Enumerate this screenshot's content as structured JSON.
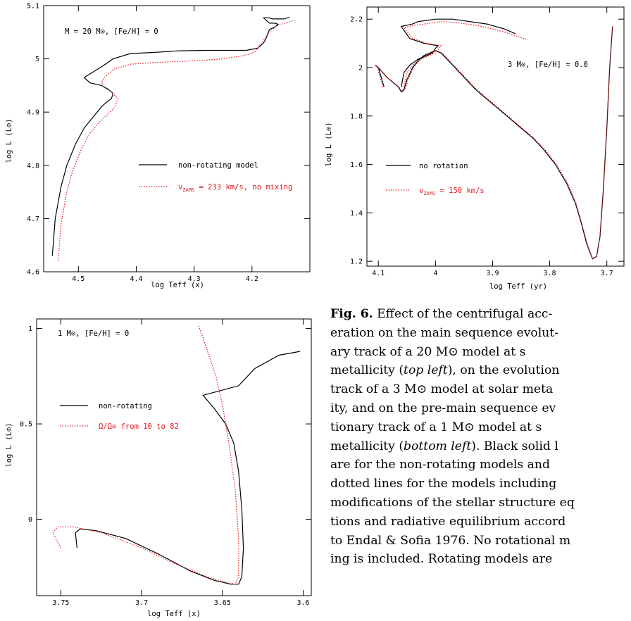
{
  "colors": {
    "nonrotating": "#000000",
    "rotating": "#e8161b"
  },
  "chart_data": [
    {
      "type": "line",
      "annotation": "M = 20 M⊙, [Fe/H] = 0",
      "xlabel": "log Teff (x)",
      "ylabel": "log L (L⊙)",
      "xlim": [
        4.56,
        4.1
      ],
      "ylim": [
        4.6,
        5.1
      ],
      "x_ticks": [
        "4.5",
        "4.4",
        "4.3",
        "4.2"
      ],
      "y_ticks": [
        "4.6",
        "4.7",
        "4.8",
        "4.9",
        "5",
        "5.1"
      ],
      "series": [
        {
          "name": "non-rotating model",
          "style": "solid",
          "x": [
            4.545,
            4.54,
            4.53,
            4.52,
            4.505,
            4.49,
            4.475,
            4.46,
            4.45,
            4.443,
            4.44,
            4.445,
            4.46,
            4.48,
            4.49,
            4.475,
            4.46,
            4.44,
            4.41,
            4.37,
            4.33,
            4.28,
            4.24,
            4.21,
            4.19,
            4.18,
            4.175,
            4.17,
            4.16,
            4.155,
            4.16,
            4.17,
            4.175,
            4.18,
            4.17,
            4.165,
            4.155,
            4.145,
            4.135
          ],
          "y": [
            4.63,
            4.7,
            4.76,
            4.8,
            4.84,
            4.87,
            4.89,
            4.91,
            4.92,
            4.925,
            4.935,
            4.94,
            4.95,
            4.955,
            4.965,
            4.975,
            4.985,
            5.0,
            5.01,
            5.012,
            5.015,
            5.016,
            5.016,
            5.016,
            5.02,
            5.03,
            5.04,
            5.055,
            5.06,
            5.065,
            5.067,
            5.067,
            5.072,
            5.077,
            5.077,
            5.075,
            5.075,
            5.075,
            5.078
          ]
        },
        {
          "name": "v_ZAMS = 233 km/s, no mixing",
          "style": "dotted",
          "x": [
            4.535,
            4.53,
            4.52,
            4.51,
            4.495,
            4.48,
            4.465,
            4.45,
            4.44,
            4.435,
            4.432,
            4.44,
            4.45,
            4.46,
            4.455,
            4.44,
            4.41,
            4.37,
            4.33,
            4.29,
            4.25,
            4.22,
            4.2,
            4.19,
            4.18,
            4.17,
            4.16,
            4.15,
            4.14,
            4.125
          ],
          "y": [
            4.62,
            4.69,
            4.75,
            4.79,
            4.83,
            4.86,
            4.88,
            4.895,
            4.905,
            4.915,
            4.925,
            4.935,
            4.945,
            4.955,
            4.965,
            4.98,
            4.99,
            4.993,
            4.995,
            4.997,
            5.0,
            5.005,
            5.01,
            5.02,
            5.035,
            5.05,
            5.06,
            5.065,
            5.068,
            5.073
          ]
        }
      ],
      "legend": "center-right"
    },
    {
      "type": "line",
      "annotation": "3 M⊙, [Fe/H] = 0.0",
      "xlabel": "log Teff (yr)",
      "ylabel": "log L (L⊙)",
      "xlim": [
        4.12,
        3.67
      ],
      "ylim": [
        1.18,
        2.25
      ],
      "x_ticks": [
        "4.1",
        "4",
        "3.9",
        "3.8",
        "3.7"
      ],
      "y_ticks": [
        "1.2",
        "1.4",
        "1.6",
        "1.8",
        "2",
        "2.2"
      ],
      "series": [
        {
          "name": "no rotation",
          "style": "solid",
          "x": [
            4.09,
            4.095,
            4.1,
            4.105,
            4.1,
            4.085,
            4.065,
            4.06,
            4.055,
            4.05,
            4.04,
            4.03,
            4.02,
            4.0,
            3.99,
            3.97,
            3.95,
            3.93,
            3.91,
            3.89,
            3.87,
            3.85,
            3.83,
            3.81,
            3.79,
            3.77,
            3.755,
            3.745,
            3.735,
            3.725,
            3.718,
            3.712,
            3.706,
            3.7,
            3.695,
            3.69
          ],
          "y": [
            1.92,
            1.96,
            2.0,
            2.01,
            2.0,
            1.96,
            1.92,
            1.9,
            1.91,
            1.95,
            2.0,
            2.03,
            2.05,
            2.07,
            2.06,
            2.01,
            1.96,
            1.91,
            1.87,
            1.83,
            1.79,
            1.75,
            1.71,
            1.66,
            1.6,
            1.52,
            1.44,
            1.36,
            1.27,
            1.21,
            1.22,
            1.3,
            1.5,
            1.75,
            2.0,
            2.17
          ]
        },
        {
          "name": "v_ZAMS = 150 km/s",
          "style": "dotted",
          "x": [
            4.092,
            4.097,
            4.102,
            4.106,
            4.1,
            4.085,
            4.064,
            4.058,
            4.053,
            4.048,
            4.038,
            4.028,
            4.018,
            3.998,
            3.988,
            3.968,
            3.948,
            3.928,
            3.908,
            3.888,
            3.868,
            3.848,
            3.828,
            3.808,
            3.788,
            3.768,
            3.754,
            3.744,
            3.734,
            3.725,
            3.718,
            3.712,
            3.706,
            3.7,
            3.695,
            3.69
          ],
          "y": [
            1.92,
            1.96,
            2.0,
            2.01,
            2.0,
            1.96,
            1.92,
            1.9,
            1.91,
            1.95,
            2.0,
            2.03,
            2.05,
            2.07,
            2.06,
            2.01,
            1.96,
            1.91,
            1.87,
            1.83,
            1.79,
            1.75,
            1.71,
            1.66,
            1.6,
            1.52,
            1.44,
            1.36,
            1.27,
            1.21,
            1.22,
            1.3,
            1.5,
            1.75,
            2.0,
            2.17
          ]
        }
      ],
      "extra": {
        "black_branch_x": [
          4.06,
          4.055,
          4.045,
          4.03,
          4.015,
          4.005,
          4.0,
          3.995,
          4.02,
          4.045,
          4.06,
          4.05,
          4.04,
          4.03,
          4.0,
          3.97,
          3.94,
          3.91,
          3.88,
          3.86
        ],
        "black_branch_y": [
          1.92,
          1.98,
          2.01,
          2.035,
          2.05,
          2.06,
          2.08,
          2.09,
          2.1,
          2.12,
          2.17,
          2.175,
          2.18,
          2.19,
          2.2,
          2.2,
          2.19,
          2.18,
          2.16,
          2.14
        ],
        "red_branch_x": [
          4.055,
          4.05,
          4.04,
          4.025,
          4.01,
          4.0,
          3.995,
          3.99,
          4.015,
          4.04,
          4.055,
          4.045,
          4.035,
          4.02,
          3.99,
          3.96,
          3.93,
          3.9,
          3.87,
          3.84
        ],
        "red_branch_y": [
          1.92,
          1.98,
          2.01,
          2.035,
          2.05,
          2.06,
          2.075,
          2.09,
          2.1,
          2.12,
          2.165,
          2.17,
          2.175,
          2.18,
          2.19,
          2.185,
          2.175,
          2.16,
          2.14,
          2.115
        ]
      },
      "legend": "center-left"
    },
    {
      "type": "line",
      "annotation": "1 M⊙, [Fe/H] = 0",
      "xlabel": "log Teff (x)",
      "ylabel": "log L (L⊙)",
      "xlim": [
        3.765,
        3.595
      ],
      "ylim": [
        -0.4,
        1.05
      ],
      "x_ticks": [
        "3.75",
        "3.7",
        "3.65",
        "3.6"
      ],
      "y_ticks": [
        "0",
        "0.5",
        "1"
      ],
      "series": [
        {
          "name": "non-rotating",
          "style": "solid",
          "x": [
            3.74,
            3.741,
            3.738,
            3.728,
            3.71,
            3.69,
            3.67,
            3.655,
            3.645,
            3.64,
            3.638,
            3.637,
            3.638,
            3.64,
            3.643,
            3.648,
            3.655,
            3.662,
            3.67,
            3.68,
            3.69,
            3.6
          ],
          "y": [
            -0.15,
            -0.07,
            -0.05,
            -0.06,
            -0.1,
            -0.18,
            -0.27,
            -0.32,
            -0.34,
            -0.34,
            -0.3,
            -0.15,
            0.05,
            0.25,
            0.4,
            0.5,
            0.58,
            0.65,
            0.72,
            0.78,
            0.83,
            0.88
          ],
          "x_real": [
            3.74,
            3.741,
            3.738,
            3.728,
            3.71,
            3.69,
            3.67,
            3.655,
            3.645,
            3.64,
            3.638,
            3.637,
            3.638,
            3.64,
            3.643,
            3.648,
            3.655,
            3.662,
            3.64,
            3.63,
            3.615,
            3.602
          ],
          "y_real": [
            -0.15,
            -0.07,
            -0.05,
            -0.06,
            -0.1,
            -0.18,
            -0.27,
            -0.32,
            -0.34,
            -0.34,
            -0.3,
            -0.15,
            0.05,
            0.25,
            0.4,
            0.5,
            0.58,
            0.65,
            0.7,
            0.79,
            0.86,
            0.88
          ]
        },
        {
          "name": "Ω/Ω⊙ from 10 to 82",
          "style": "dotted",
          "x": [
            3.75,
            3.755,
            3.752,
            3.742,
            3.725,
            3.7,
            3.68,
            3.66,
            3.648,
            3.642,
            3.64,
            3.64,
            3.642,
            3.646,
            3.65,
            3.654,
            3.658,
            3.662,
            3.665
          ],
          "y": [
            -0.15,
            -0.07,
            -0.04,
            -0.04,
            -0.07,
            -0.15,
            -0.23,
            -0.3,
            -0.33,
            -0.34,
            -0.3,
            -0.1,
            0.15,
            0.4,
            0.6,
            0.75,
            0.85,
            0.95,
            1.02
          ]
        }
      ],
      "legend": "center-left"
    }
  ],
  "caption": {
    "fig_label": "Fig. 6.",
    "lines": [
      " Effect of the centrifugal acc-",
      "eration on the main sequence evolut-",
      "ary track of a 20 M⊙ model at s",
      "metallicity (top left), on the evolution",
      "track of a 3 M⊙ model at solar meta",
      "ity, and on the pre-main sequence ev",
      "tionary track of a 1 M⊙ model at s",
      "metallicity (bottom left). Black solid l",
      "are for the non-rotating models and",
      "dotted lines for the models including",
      "modifications of the stellar structure eq",
      "tions and radiative equilibrium accord",
      "to Endal & Sofia 1976. No rotational m",
      "ing is included.  Rotating models are"
    ]
  }
}
